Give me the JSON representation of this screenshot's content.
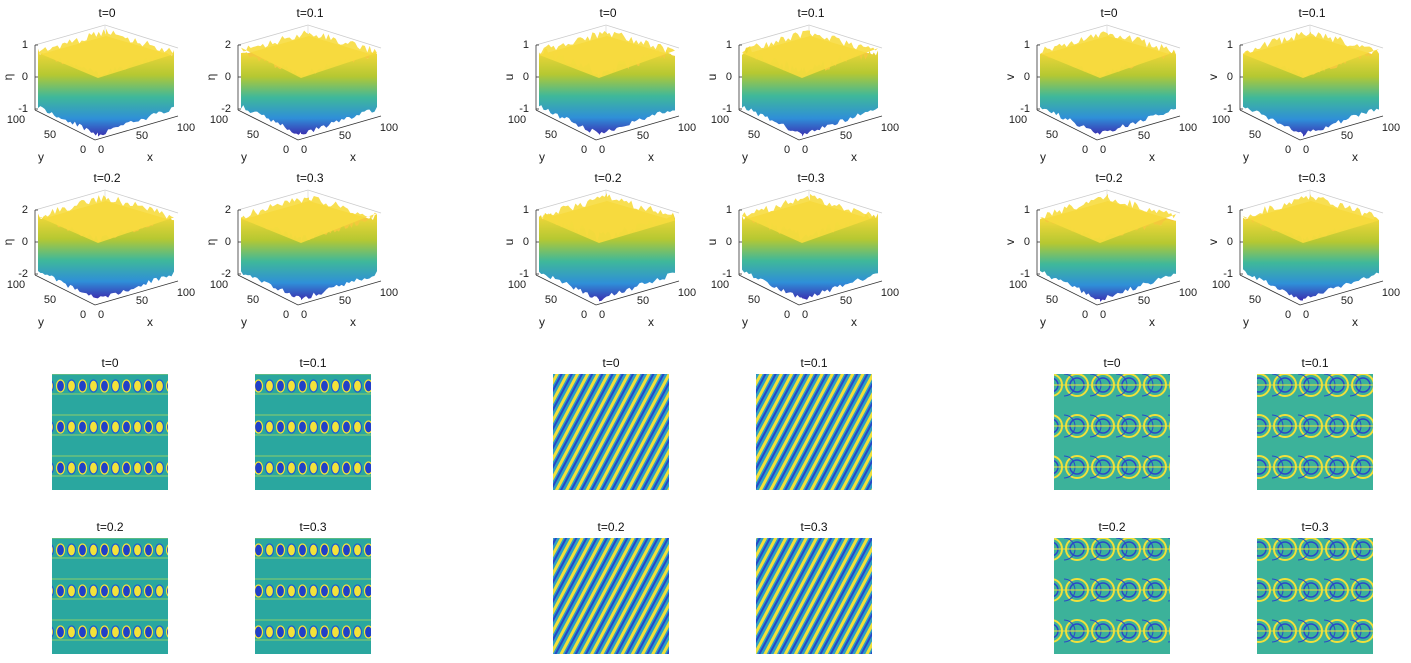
{
  "xlabel": "x",
  "ylabel": "y",
  "xticks": [
    0,
    50,
    100
  ],
  "yticks": [
    100,
    50,
    0
  ],
  "groups": [
    {
      "surfaces": [
        {
          "title": "t=0",
          "zlabel": "η",
          "zticks": [
            -1,
            0,
            1
          ]
        },
        {
          "title": "t=0.1",
          "zlabel": "η",
          "zticks": [
            -2,
            0,
            2
          ]
        },
        {
          "title": "t=0.2",
          "zlabel": "η",
          "zticks": [
            -2,
            0,
            2
          ]
        },
        {
          "title": "t=0.3",
          "zlabel": "η",
          "zticks": [
            -2,
            0,
            2
          ]
        }
      ],
      "maps": [
        "t=0",
        "t=0.1",
        "t=0.2",
        "t=0.3"
      ]
    },
    {
      "surfaces": [
        {
          "title": "t=0",
          "zlabel": "u",
          "zticks": [
            -1,
            0,
            1
          ]
        },
        {
          "title": "t=0.1",
          "zlabel": "u",
          "zticks": [
            -1,
            0,
            1
          ]
        },
        {
          "title": "t=0.2",
          "zlabel": "u",
          "zticks": [
            -1,
            0,
            1
          ]
        },
        {
          "title": "t=0.3",
          "zlabel": "u",
          "zticks": [
            -1,
            0,
            1
          ]
        }
      ],
      "maps": [
        "t=0",
        "t=0.1",
        "t=0.2",
        "t=0.3"
      ]
    },
    {
      "surfaces": [
        {
          "title": "t=0",
          "zlabel": "v",
          "zticks": [
            -1,
            0,
            1
          ]
        },
        {
          "title": "t=0.1",
          "zlabel": "v",
          "zticks": [
            -1,
            0,
            1
          ]
        },
        {
          "title": "t=0.2",
          "zlabel": "v",
          "zticks": [
            -1,
            0,
            1
          ]
        },
        {
          "title": "t=0.3",
          "zlabel": "v",
          "zticks": [
            -1,
            0,
            1
          ]
        }
      ],
      "maps": [
        "t=0",
        "t=0.1",
        "t=0.2",
        "t=0.3"
      ]
    }
  ]
}
